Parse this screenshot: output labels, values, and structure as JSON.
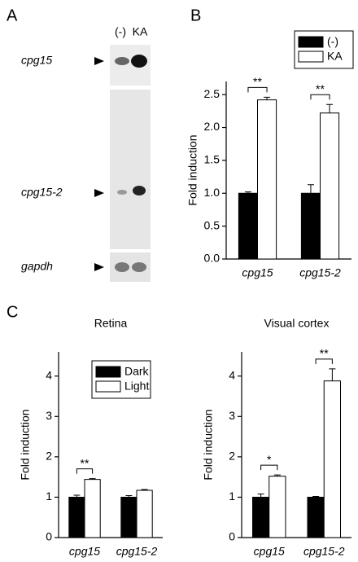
{
  "panel_labels": [
    "A",
    "B",
    "C"
  ],
  "blot": {
    "lanes": [
      "(-)",
      "KA"
    ],
    "genes": [
      "cpg15",
      "cpg15-2",
      "gapdh"
    ]
  },
  "chart_data": [
    {
      "type": "bar",
      "ylabel": "Fold induction",
      "categories": [
        "cpg15",
        "cpg15-2"
      ],
      "series": [
        {
          "name": "(-)",
          "color": "#000000",
          "values": [
            1.0,
            1.0
          ],
          "errors": [
            0.02,
            0.13
          ]
        },
        {
          "name": "KA",
          "color": "#ffffff",
          "values": [
            2.42,
            2.22
          ],
          "errors": [
            0.04,
            0.13
          ]
        }
      ],
      "significance": [
        "**",
        "**"
      ],
      "ylim": [
        0,
        2.7
      ],
      "yticks": [
        {
          "value": 0,
          "label": "0.0"
        },
        {
          "value": 0.5,
          "label": "0.5"
        },
        {
          "value": 1,
          "label": "1.0"
        },
        {
          "value": 1.5,
          "label": "1.5"
        },
        {
          "value": 2,
          "label": "2.0"
        },
        {
          "value": 2.5,
          "label": "2.5"
        }
      ],
      "legend": "outside upper right"
    },
    {
      "type": "bar",
      "title": "Retina",
      "ylabel": "Fold induction",
      "categories": [
        "cpg15",
        "cpg15-2"
      ],
      "series": [
        {
          "name": "Dark",
          "color": "#000000",
          "values": [
            1.0,
            1.0
          ],
          "errors": [
            0.05,
            0.04
          ]
        },
        {
          "name": "Light",
          "color": "#ffffff",
          "values": [
            1.44,
            1.17
          ],
          "errors": [
            0.02,
            0.02
          ]
        }
      ],
      "significance": [
        "**",
        null
      ],
      "ylim": [
        0,
        4.6
      ],
      "yticks": [
        0,
        1,
        2,
        3,
        4
      ],
      "legend": "upper right"
    },
    {
      "type": "bar",
      "title": "Visual cortex",
      "ylabel": "Fold induction",
      "categories": [
        "cpg15",
        "cpg15-2"
      ],
      "series": [
        {
          "name": "Dark",
          "color": "#000000",
          "values": [
            1.0,
            1.0
          ],
          "errors": [
            0.08,
            0.02
          ]
        },
        {
          "name": "Light",
          "color": "#ffffff",
          "values": [
            1.52,
            3.88
          ],
          "errors": [
            0.03,
            0.3
          ]
        }
      ],
      "significance": [
        "*",
        "**"
      ],
      "ylim": [
        0,
        4.6
      ],
      "yticks": [
        0,
        1,
        2,
        3,
        4
      ]
    }
  ]
}
